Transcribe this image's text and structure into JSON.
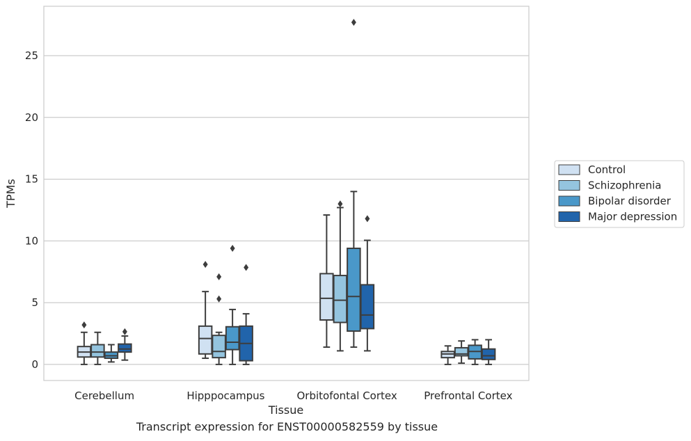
{
  "caption": "Transcript expression for ENST00000582559 by tissue",
  "chart_data": {
    "type": "box",
    "xlabel": "Tissue",
    "ylabel": "TPMs",
    "ylim": [
      -1.3,
      29
    ],
    "yticks": [
      0,
      5,
      10,
      15,
      20,
      25
    ],
    "grid": "horizontal",
    "legend_position": "right",
    "categories": [
      "Cerebellum",
      "Hipppocampus",
      "Orbitofontal Cortex",
      "Prefrontal Cortex"
    ],
    "series": [
      {
        "name": "Control",
        "color": "#d0e1f2",
        "boxes": [
          {
            "whislo": 0.0,
            "q1": 0.6,
            "med": 1.0,
            "q3": 1.45,
            "whishi": 2.6,
            "fliers": [
              3.2
            ]
          },
          {
            "whislo": 0.5,
            "q1": 0.85,
            "med": 2.1,
            "q3": 3.1,
            "whishi": 5.9,
            "fliers": [
              8.1
            ]
          },
          {
            "whislo": 1.4,
            "q1": 3.6,
            "med": 5.35,
            "q3": 7.35,
            "whishi": 12.1,
            "fliers": []
          },
          {
            "whislo": 0.0,
            "q1": 0.55,
            "med": 0.85,
            "q3": 1.05,
            "whishi": 1.5,
            "fliers": []
          }
        ]
      },
      {
        "name": "Schizophrenia",
        "color": "#94c4df",
        "boxes": [
          {
            "whislo": 0.0,
            "q1": 0.6,
            "med": 1.0,
            "q3": 1.6,
            "whishi": 2.6,
            "fliers": []
          },
          {
            "whislo": 0.0,
            "q1": 0.55,
            "med": 1.05,
            "q3": 2.35,
            "whishi": 2.6,
            "fliers": [
              7.1,
              5.3
            ]
          },
          {
            "whislo": 1.1,
            "q1": 3.4,
            "med": 5.2,
            "q3": 7.2,
            "whishi": 12.7,
            "fliers": [
              13.0
            ]
          },
          {
            "whislo": 0.1,
            "q1": 0.7,
            "med": 0.85,
            "q3": 1.35,
            "whishi": 1.9,
            "fliers": []
          }
        ]
      },
      {
        "name": "Bipolar disorder",
        "color": "#4a98c9",
        "boxes": [
          {
            "whislo": 0.2,
            "q1": 0.5,
            "med": 0.7,
            "q3": 1.0,
            "whishi": 1.6,
            "fliers": []
          },
          {
            "whislo": 0.0,
            "q1": 1.2,
            "med": 1.8,
            "q3": 3.05,
            "whishi": 4.45,
            "fliers": [
              9.4
            ]
          },
          {
            "whislo": 1.4,
            "q1": 2.7,
            "med": 5.5,
            "q3": 9.4,
            "whishi": 14.0,
            "fliers": [
              27.7
            ]
          },
          {
            "whislo": 0.0,
            "q1": 0.45,
            "med": 1.05,
            "q3": 1.55,
            "whishi": 2.0,
            "fliers": []
          }
        ]
      },
      {
        "name": "Major depression",
        "color": "#2164ab",
        "boxes": [
          {
            "whislo": 0.35,
            "q1": 1.0,
            "med": 1.25,
            "q3": 1.65,
            "whishi": 2.3,
            "fliers": [
              2.65
            ]
          },
          {
            "whislo": 0.0,
            "q1": 0.3,
            "med": 1.7,
            "q3": 3.1,
            "whishi": 4.1,
            "fliers": [
              7.85
            ]
          },
          {
            "whislo": 1.1,
            "q1": 2.9,
            "med": 4.0,
            "q3": 6.45,
            "whishi": 10.05,
            "fliers": [
              11.8
            ]
          },
          {
            "whislo": 0.0,
            "q1": 0.4,
            "med": 0.7,
            "q3": 1.25,
            "whishi": 2.0,
            "fliers": []
          }
        ]
      }
    ]
  }
}
